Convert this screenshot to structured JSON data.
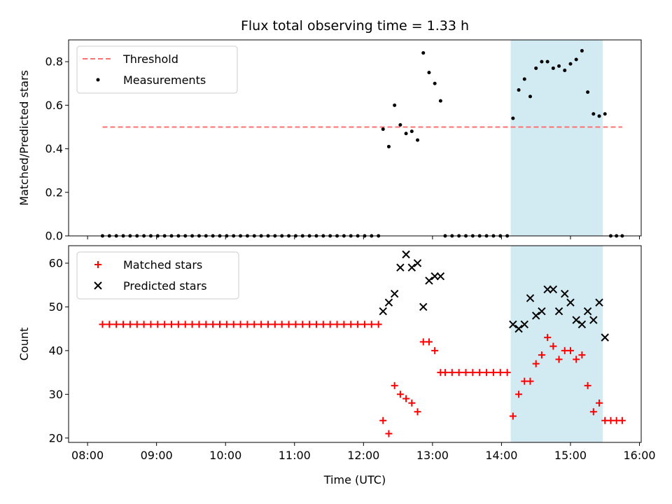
{
  "chart_data": [
    {
      "type": "scatter",
      "title": "Flux total observing time = 1.33 h",
      "xlabel": "",
      "ylabel": "Matched/Predicted stars",
      "xlim": [
        "08:00",
        "16:00"
      ],
      "ylim": [
        0,
        0.9
      ],
      "yticks": [
        "0.0",
        "0.2",
        "0.4",
        "0.6",
        "0.8"
      ],
      "shaded_region": {
        "start": "14:08",
        "end": "15:28",
        "color": "#add8e6"
      },
      "legend_position": "upper-left",
      "series": [
        {
          "name": "Threshold",
          "kind": "dashed-line",
          "color": "#ff7070",
          "points": [
            [
              "08:13",
              0.5
            ],
            [
              "15:45",
              0.5
            ]
          ]
        },
        {
          "name": "Measurements",
          "kind": "dot",
          "color": "#000000",
          "points": [
            [
              "08:13",
              0
            ],
            [
              "08:19",
              0
            ],
            [
              "08:25",
              0
            ],
            [
              "08:31",
              0
            ],
            [
              "08:37",
              0
            ],
            [
              "08:43",
              0
            ],
            [
              "08:49",
              0
            ],
            [
              "08:55",
              0
            ],
            [
              "09:01",
              0
            ],
            [
              "09:07",
              0
            ],
            [
              "09:13",
              0
            ],
            [
              "09:19",
              0
            ],
            [
              "09:25",
              0
            ],
            [
              "09:31",
              0
            ],
            [
              "09:37",
              0
            ],
            [
              "09:43",
              0
            ],
            [
              "09:49",
              0
            ],
            [
              "09:55",
              0
            ],
            [
              "10:01",
              0
            ],
            [
              "10:07",
              0
            ],
            [
              "10:13",
              0
            ],
            [
              "10:19",
              0
            ],
            [
              "10:25",
              0
            ],
            [
              "10:31",
              0
            ],
            [
              "10:37",
              0
            ],
            [
              "10:43",
              0
            ],
            [
              "10:49",
              0
            ],
            [
              "10:55",
              0
            ],
            [
              "11:01",
              0
            ],
            [
              "11:07",
              0
            ],
            [
              "11:13",
              0
            ],
            [
              "11:19",
              0
            ],
            [
              "11:25",
              0
            ],
            [
              "11:31",
              0
            ],
            [
              "11:37",
              0
            ],
            [
              "11:43",
              0
            ],
            [
              "11:49",
              0
            ],
            [
              "11:55",
              0
            ],
            [
              "12:01",
              0
            ],
            [
              "12:07",
              0
            ],
            [
              "12:13",
              0
            ],
            [
              "12:17",
              0.49
            ],
            [
              "12:22",
              0.41
            ],
            [
              "12:27",
              0.6
            ],
            [
              "12:32",
              0.51
            ],
            [
              "12:37",
              0.47
            ],
            [
              "12:42",
              0.48
            ],
            [
              "12:47",
              0.44
            ],
            [
              "12:52",
              0.84
            ],
            [
              "12:57",
              0.75
            ],
            [
              "13:02",
              0.7
            ],
            [
              "13:07",
              0.62
            ],
            [
              "13:11",
              0
            ],
            [
              "13:17",
              0
            ],
            [
              "13:23",
              0
            ],
            [
              "13:29",
              0
            ],
            [
              "13:35",
              0
            ],
            [
              "13:41",
              0
            ],
            [
              "13:47",
              0
            ],
            [
              "13:53",
              0
            ],
            [
              "13:59",
              0
            ],
            [
              "14:05",
              0
            ],
            [
              "14:10",
              0.54
            ],
            [
              "14:15",
              0.67
            ],
            [
              "14:20",
              0.72
            ],
            [
              "14:25",
              0.64
            ],
            [
              "14:30",
              0.77
            ],
            [
              "14:35",
              0.8
            ],
            [
              "14:40",
              0.8
            ],
            [
              "14:45",
              0.77
            ],
            [
              "14:50",
              0.78
            ],
            [
              "14:55",
              0.76
            ],
            [
              "15:00",
              0.79
            ],
            [
              "15:05",
              0.81
            ],
            [
              "15:10",
              0.85
            ],
            [
              "15:15",
              0.66
            ],
            [
              "15:20",
              0.56
            ],
            [
              "15:25",
              0.55
            ],
            [
              "15:30",
              0.56
            ],
            [
              "15:35",
              0
            ],
            [
              "15:40",
              0
            ],
            [
              "15:45",
              0
            ]
          ]
        }
      ]
    },
    {
      "type": "scatter",
      "title": "",
      "xlabel": "Time (UTC)",
      "ylabel": "Count",
      "xlim": [
        "08:00",
        "16:00"
      ],
      "ylim": [
        19,
        64
      ],
      "xticks": [
        "08:00",
        "09:00",
        "10:00",
        "11:00",
        "12:00",
        "13:00",
        "14:00",
        "15:00",
        "16:00"
      ],
      "yticks": [
        "20",
        "30",
        "40",
        "50",
        "60"
      ],
      "shaded_region": {
        "start": "14:08",
        "end": "15:28",
        "color": "#add8e6"
      },
      "legend_position": "upper-left",
      "series": [
        {
          "name": "Matched stars",
          "kind": "plus",
          "color": "#ff0000",
          "points": [
            [
              "08:13",
              46
            ],
            [
              "08:19",
              46
            ],
            [
              "08:25",
              46
            ],
            [
              "08:31",
              46
            ],
            [
              "08:37",
              46
            ],
            [
              "08:43",
              46
            ],
            [
              "08:49",
              46
            ],
            [
              "08:55",
              46
            ],
            [
              "09:01",
              46
            ],
            [
              "09:07",
              46
            ],
            [
              "09:13",
              46
            ],
            [
              "09:19",
              46
            ],
            [
              "09:25",
              46
            ],
            [
              "09:31",
              46
            ],
            [
              "09:37",
              46
            ],
            [
              "09:43",
              46
            ],
            [
              "09:49",
              46
            ],
            [
              "09:55",
              46
            ],
            [
              "10:01",
              46
            ],
            [
              "10:07",
              46
            ],
            [
              "10:13",
              46
            ],
            [
              "10:19",
              46
            ],
            [
              "10:25",
              46
            ],
            [
              "10:31",
              46
            ],
            [
              "10:37",
              46
            ],
            [
              "10:43",
              46
            ],
            [
              "10:49",
              46
            ],
            [
              "10:55",
              46
            ],
            [
              "11:01",
              46
            ],
            [
              "11:07",
              46
            ],
            [
              "11:13",
              46
            ],
            [
              "11:19",
              46
            ],
            [
              "11:25",
              46
            ],
            [
              "11:31",
              46
            ],
            [
              "11:37",
              46
            ],
            [
              "11:43",
              46
            ],
            [
              "11:49",
              46
            ],
            [
              "11:55",
              46
            ],
            [
              "12:01",
              46
            ],
            [
              "12:07",
              46
            ],
            [
              "12:13",
              46
            ],
            [
              "12:17",
              24
            ],
            [
              "12:22",
              21
            ],
            [
              "12:27",
              32
            ],
            [
              "12:32",
              30
            ],
            [
              "12:37",
              29
            ],
            [
              "12:42",
              28
            ],
            [
              "12:47",
              26
            ],
            [
              "12:52",
              42
            ],
            [
              "12:57",
              42
            ],
            [
              "13:02",
              40
            ],
            [
              "13:07",
              35
            ],
            [
              "13:11",
              35
            ],
            [
              "13:17",
              35
            ],
            [
              "13:23",
              35
            ],
            [
              "13:29",
              35
            ],
            [
              "13:35",
              35
            ],
            [
              "13:41",
              35
            ],
            [
              "13:47",
              35
            ],
            [
              "13:53",
              35
            ],
            [
              "13:59",
              35
            ],
            [
              "14:05",
              35
            ],
            [
              "14:10",
              25
            ],
            [
              "14:15",
              30
            ],
            [
              "14:20",
              33
            ],
            [
              "14:25",
              33
            ],
            [
              "14:30",
              37
            ],
            [
              "14:35",
              39
            ],
            [
              "14:40",
              43
            ],
            [
              "14:45",
              41
            ],
            [
              "14:50",
              38
            ],
            [
              "14:55",
              40
            ],
            [
              "15:00",
              40
            ],
            [
              "15:05",
              38
            ],
            [
              "15:10",
              39
            ],
            [
              "15:15",
              32
            ],
            [
              "15:20",
              26
            ],
            [
              "15:25",
              28
            ],
            [
              "15:30",
              24
            ],
            [
              "15:35",
              24
            ],
            [
              "15:40",
              24
            ],
            [
              "15:45",
              24
            ]
          ]
        },
        {
          "name": "Predicted stars",
          "kind": "cross",
          "color": "#000000",
          "points": [
            [
              "12:17",
              49
            ],
            [
              "12:22",
              51
            ],
            [
              "12:27",
              53
            ],
            [
              "12:32",
              59
            ],
            [
              "12:37",
              62
            ],
            [
              "12:42",
              59
            ],
            [
              "12:47",
              60
            ],
            [
              "12:52",
              50
            ],
            [
              "12:57",
              56
            ],
            [
              "13:02",
              57
            ],
            [
              "13:07",
              57
            ],
            [
              "14:10",
              46
            ],
            [
              "14:15",
              45
            ],
            [
              "14:20",
              46
            ],
            [
              "14:25",
              52
            ],
            [
              "14:30",
              48
            ],
            [
              "14:35",
              49
            ],
            [
              "14:40",
              54
            ],
            [
              "14:45",
              54
            ],
            [
              "14:50",
              49
            ],
            [
              "14:55",
              53
            ],
            [
              "15:00",
              51
            ],
            [
              "15:05",
              47
            ],
            [
              "15:10",
              46
            ],
            [
              "15:15",
              49
            ],
            [
              "15:20",
              47
            ],
            [
              "15:25",
              51
            ],
            [
              "15:30",
              43
            ]
          ]
        }
      ]
    }
  ]
}
